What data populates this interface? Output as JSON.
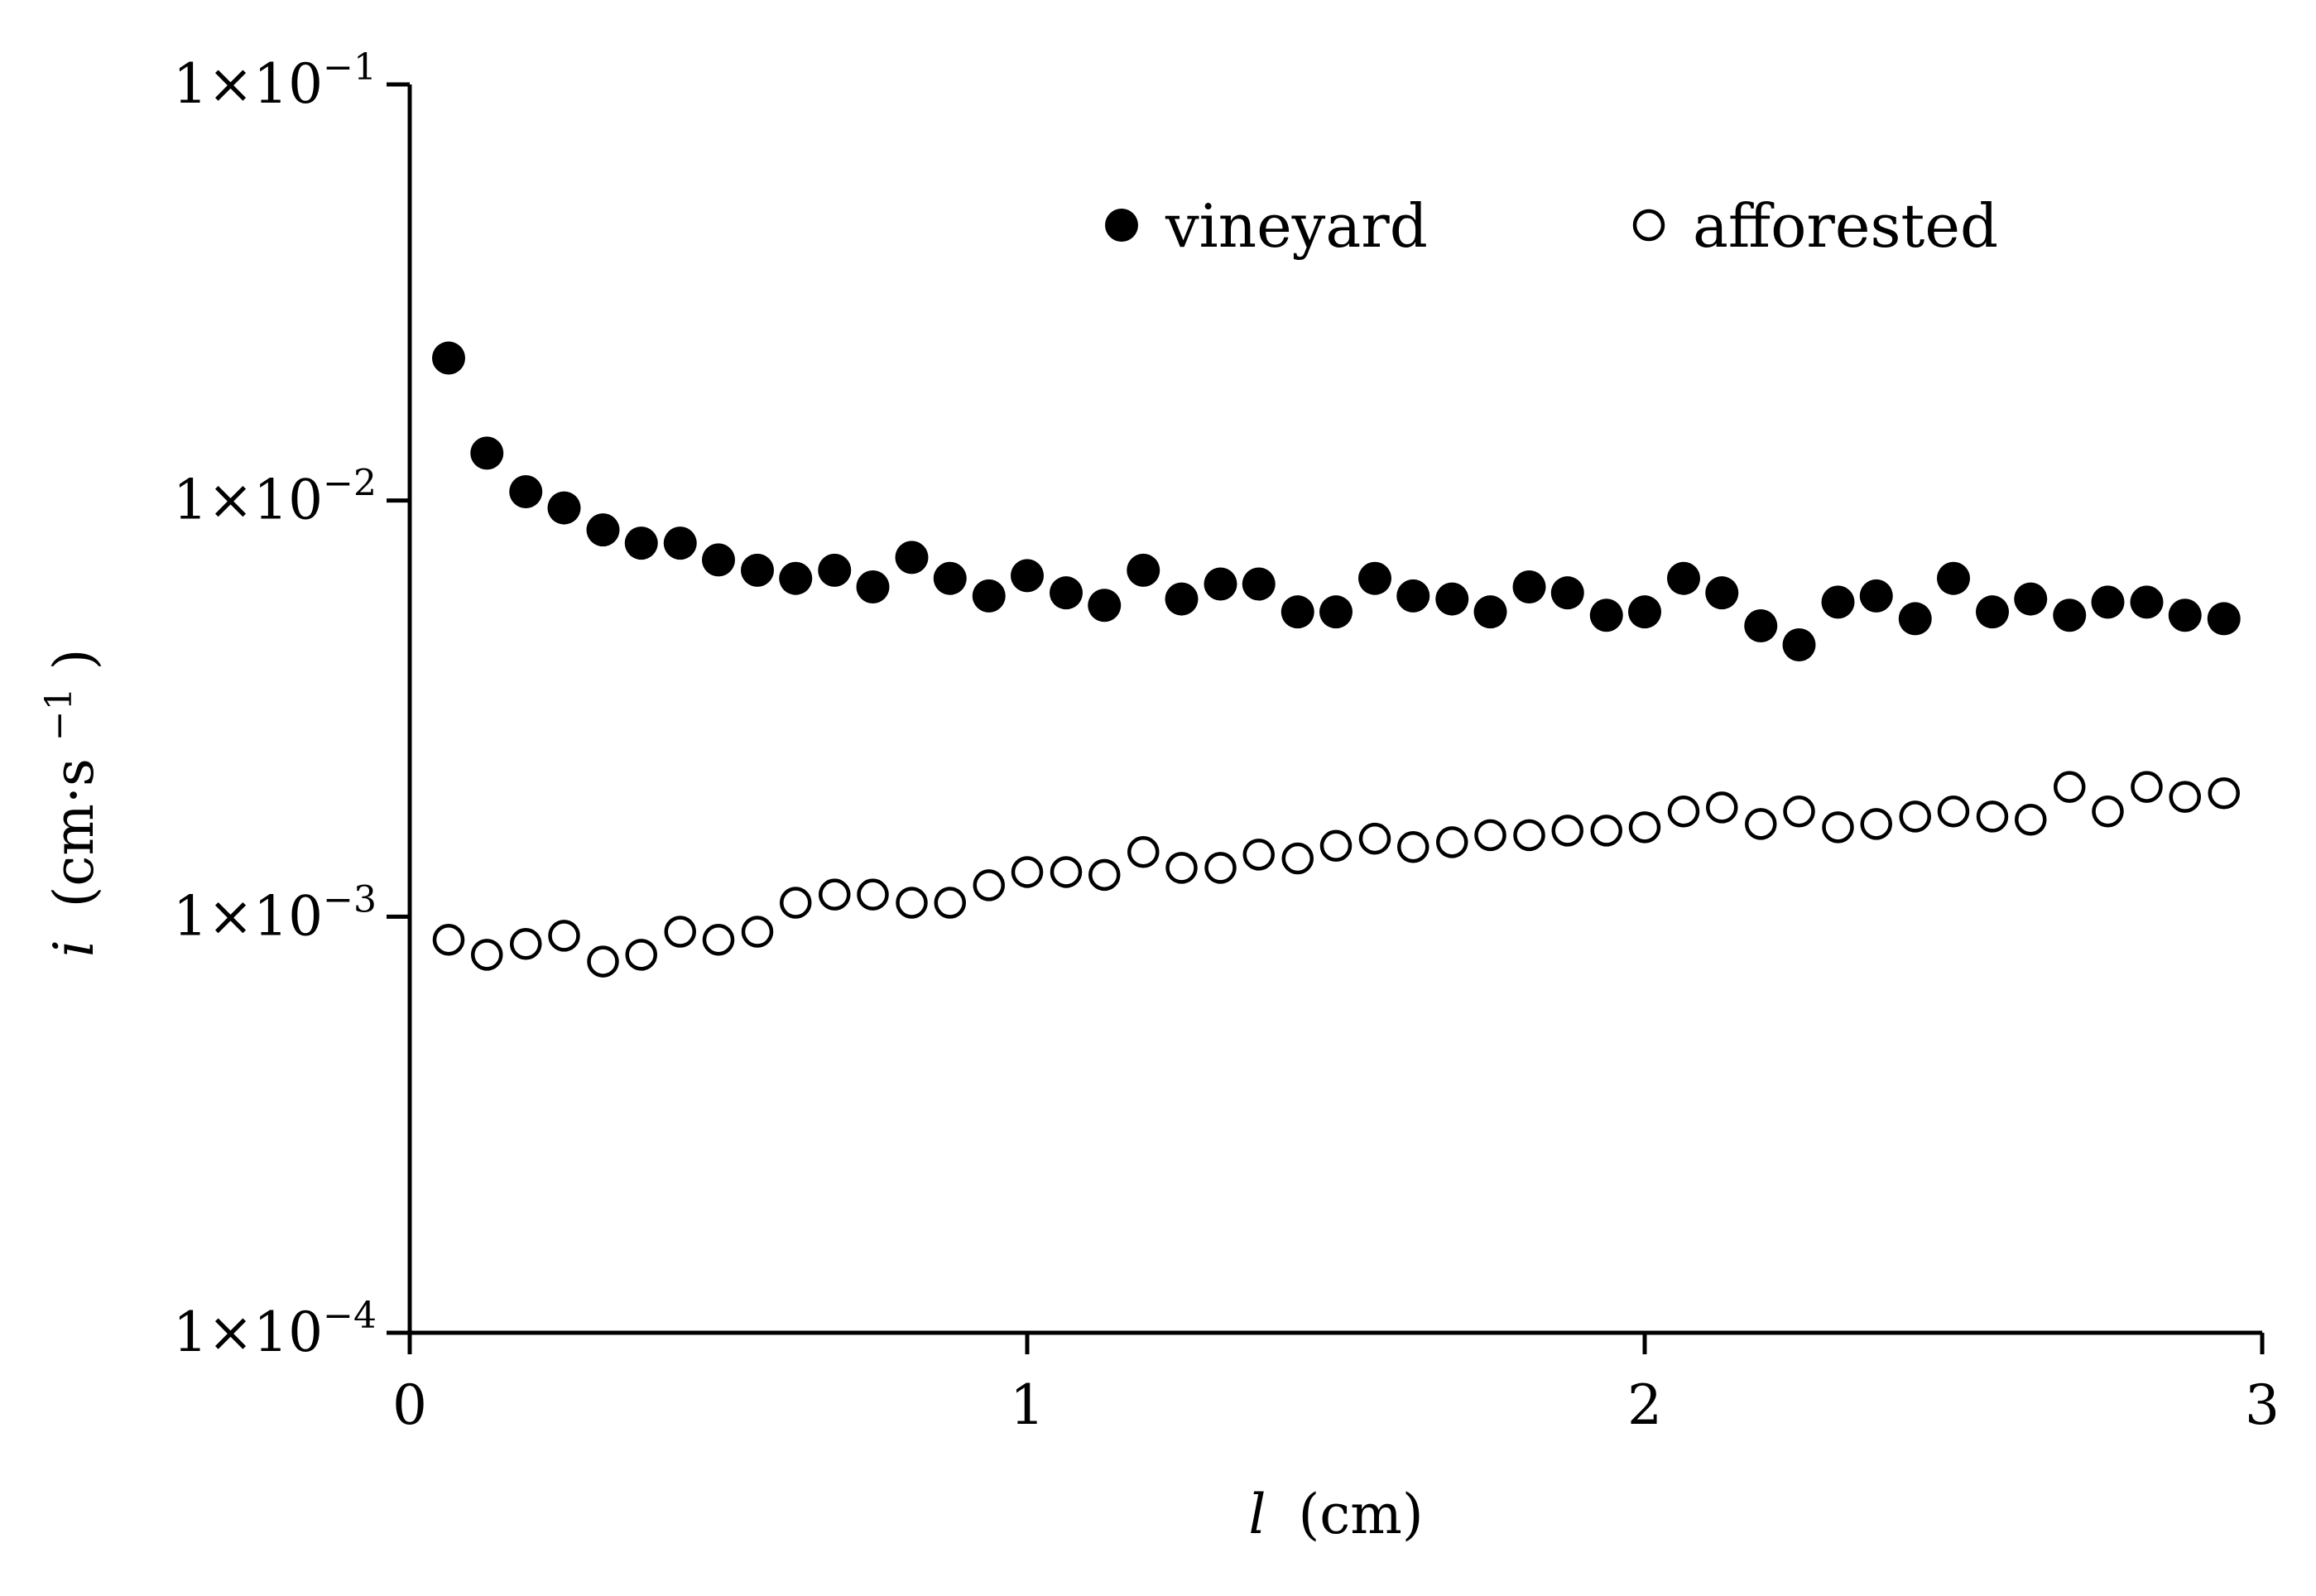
{
  "chart_data": {
    "type": "scatter",
    "title": "",
    "xlabel": {
      "var": "l",
      "unit": "(cm)"
    },
    "ylabel": {
      "var": "i",
      "unit_pre": "(cm·s",
      "unit_sup": "−1",
      "unit_post": ")"
    },
    "xlim": [
      0,
      3
    ],
    "ylim": [
      0.0001,
      0.1
    ],
    "yscale": "log",
    "grid": false,
    "legend_position": "top-right",
    "x_ticks": [
      {
        "value": 0,
        "label": "0"
      },
      {
        "value": 1,
        "label": "1"
      },
      {
        "value": 2,
        "label": "2"
      },
      {
        "value": 3,
        "label": "3"
      }
    ],
    "y_ticks": [
      {
        "value": 0.1,
        "mant": "1×10",
        "exp": "−1"
      },
      {
        "value": 0.01,
        "mant": "1×10",
        "exp": "−2"
      },
      {
        "value": 0.001,
        "mant": "1×10",
        "exp": "−3"
      },
      {
        "value": 0.0001,
        "mant": "1×10",
        "exp": "−4"
      }
    ],
    "x": [
      0.063,
      0.125,
      0.188,
      0.25,
      0.313,
      0.375,
      0.438,
      0.5,
      0.563,
      0.625,
      0.688,
      0.75,
      0.813,
      0.875,
      0.938,
      1.0,
      1.063,
      1.125,
      1.188,
      1.25,
      1.313,
      1.375,
      1.438,
      1.5,
      1.563,
      1.625,
      1.688,
      1.75,
      1.813,
      1.875,
      1.938,
      2.0,
      2.063,
      2.125,
      2.188,
      2.25,
      2.313,
      2.375,
      2.438,
      2.5,
      2.563,
      2.625,
      2.688,
      2.75,
      2.813,
      2.875,
      2.938
    ],
    "series": [
      {
        "name": "vineyard",
        "marker": "filled-circle",
        "color": "#000000",
        "values": [
          0.022,
          0.013,
          0.0105,
          0.0096,
          0.0085,
          0.0079,
          0.0079,
          0.0072,
          0.0068,
          0.0065,
          0.0068,
          0.0062,
          0.0073,
          0.0065,
          0.0059,
          0.0066,
          0.006,
          0.0056,
          0.0068,
          0.0058,
          0.0063,
          0.0063,
          0.0054,
          0.0054,
          0.0065,
          0.0059,
          0.0058,
          0.0054,
          0.0062,
          0.006,
          0.0053,
          0.0054,
          0.0065,
          0.006,
          0.005,
          0.0045,
          0.0057,
          0.0059,
          0.0052,
          0.0065,
          0.0054,
          0.0058,
          0.0053,
          0.0057,
          0.0057,
          0.0053,
          0.0052
        ]
      },
      {
        "name": "afforested",
        "marker": "open-circle",
        "color": "#000000",
        "values": [
          0.00088,
          0.00081,
          0.00086,
          0.0009,
          0.00078,
          0.00081,
          0.00092,
          0.00088,
          0.00092,
          0.00108,
          0.00113,
          0.00113,
          0.00108,
          0.00108,
          0.00119,
          0.00128,
          0.00128,
          0.00126,
          0.00143,
          0.00131,
          0.00131,
          0.00141,
          0.00138,
          0.00148,
          0.00154,
          0.00147,
          0.00151,
          0.00157,
          0.00157,
          0.00161,
          0.00161,
          0.00164,
          0.00179,
          0.00183,
          0.00167,
          0.00179,
          0.00164,
          0.00167,
          0.00174,
          0.00179,
          0.00174,
          0.00171,
          0.00205,
          0.00179,
          0.00205,
          0.00194,
          0.00198
        ]
      }
    ]
  }
}
